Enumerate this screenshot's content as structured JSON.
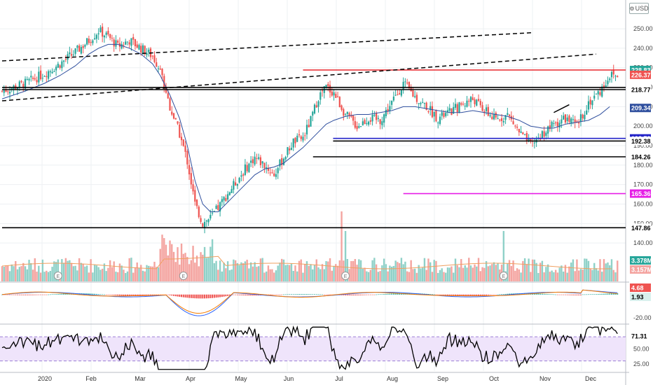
{
  "currency_button": {
    "label": "USD",
    "icon": "gear-icon"
  },
  "colors": {
    "up": "#26a69a",
    "down": "#ef5350",
    "vol_up": "#8fd1c8",
    "vol_down": "#f4a4a0",
    "ma": "#2f4f9e",
    "red_line": "#e8262b",
    "blue_line": "#2323c8",
    "magenta_line": "#e61ee6",
    "rsi_fill": "#efe4fb",
    "rsi_line": "#000000",
    "grid": "#eef0f3",
    "axis": "#555"
  },
  "earnings_marker": "E",
  "chart_data": [
    {
      "name": "price",
      "type": "candlestick",
      "y_range": [
        135,
        256
      ],
      "y_ticks": [
        140,
        150,
        160,
        170,
        180,
        190,
        200,
        210,
        220,
        230,
        240,
        250
      ],
      "x_labels": [
        {
          "label": "2020",
          "x": 44
        },
        {
          "label": "Feb",
          "x": 44.6
        },
        {
          "label": "Mar",
          "x": 45.2
        },
        {
          "label": "Apr",
          "x": 45.8
        },
        {
          "label": "May",
          "x": 46.4
        },
        {
          "label": "Jun",
          "x": 47
        },
        {
          "label": "Jul",
          "x": 47.6
        },
        {
          "label": "Aug",
          "x": 48.2
        },
        {
          "label": "Sep",
          "x": 48.8
        },
        {
          "label": "Oct",
          "x": 49.4
        },
        {
          "label": "Nov",
          "x": 50
        },
        {
          "label": "Dec",
          "x": 50.6
        }
      ],
      "price_path": [
        [
          0,
          218
        ],
        [
          12,
          222
        ],
        [
          22,
          227
        ],
        [
          30,
          232
        ],
        [
          38,
          238
        ],
        [
          45,
          244
        ],
        [
          50,
          249
        ],
        [
          55,
          246
        ],
        [
          60,
          241
        ],
        [
          66,
          244
        ],
        [
          72,
          240
        ],
        [
          78,
          236
        ],
        [
          82,
          229
        ],
        [
          87,
          210
        ],
        [
          92,
          196
        ],
        [
          96,
          182
        ],
        [
          100,
          160
        ],
        [
          104,
          150
        ],
        [
          108,
          153
        ],
        [
          112,
          158
        ],
        [
          116,
          164
        ],
        [
          121,
          171
        ],
        [
          126,
          178
        ],
        [
          131,
          184
        ],
        [
          136,
          180
        ],
        [
          141,
          175
        ],
        [
          146,
          184
        ],
        [
          151,
          192
        ],
        [
          156,
          194
        ],
        [
          160,
          203
        ],
        [
          164,
          215
        ],
        [
          168,
          220
        ],
        [
          172,
          217
        ],
        [
          178,
          206
        ],
        [
          184,
          200
        ],
        [
          190,
          204
        ],
        [
          196,
          203
        ],
        [
          202,
          212
        ],
        [
          208,
          222
        ],
        [
          214,
          215
        ],
        [
          220,
          210
        ],
        [
          226,
          204
        ],
        [
          232,
          207
        ],
        [
          238,
          211
        ],
        [
          244,
          214
        ],
        [
          250,
          208
        ],
        [
          256,
          203
        ],
        [
          262,
          206
        ],
        [
          268,
          197
        ],
        [
          274,
          190
        ],
        [
          280,
          196
        ],
        [
          286,
          201
        ],
        [
          292,
          204
        ],
        [
          298,
          200
        ],
        [
          304,
          212
        ],
        [
          310,
          218
        ],
        [
          315,
          226
        ]
      ],
      "ma": [
        [
          0,
          214
        ],
        [
          12,
          218
        ],
        [
          22,
          222
        ],
        [
          30,
          226
        ],
        [
          38,
          231
        ],
        [
          45,
          237
        ],
        [
          50,
          240
        ],
        [
          55,
          242
        ],
        [
          60,
          242
        ],
        [
          66,
          240
        ],
        [
          72,
          237
        ],
        [
          78,
          232
        ],
        [
          82,
          226
        ],
        [
          87,
          216
        ],
        [
          92,
          204
        ],
        [
          96,
          190
        ],
        [
          100,
          172
        ],
        [
          104,
          160
        ],
        [
          108,
          156
        ],
        [
          112,
          156
        ],
        [
          116,
          160
        ],
        [
          121,
          165
        ],
        [
          126,
          170
        ],
        [
          131,
          175
        ],
        [
          136,
          178
        ],
        [
          141,
          179
        ],
        [
          146,
          181
        ],
        [
          151,
          185
        ],
        [
          156,
          189
        ],
        [
          160,
          193
        ],
        [
          164,
          197
        ],
        [
          168,
          201
        ],
        [
          172,
          203
        ],
        [
          178,
          205
        ],
        [
          184,
          206
        ],
        [
          190,
          206
        ],
        [
          196,
          207
        ],
        [
          202,
          208
        ],
        [
          208,
          210
        ],
        [
          214,
          210
        ],
        [
          220,
          209
        ],
        [
          226,
          208
        ],
        [
          232,
          207
        ],
        [
          238,
          207
        ],
        [
          244,
          208
        ],
        [
          250,
          207
        ],
        [
          256,
          206
        ],
        [
          262,
          205
        ],
        [
          268,
          203
        ],
        [
          274,
          200
        ],
        [
          280,
          199
        ],
        [
          286,
          199
        ],
        [
          292,
          201
        ],
        [
          298,
          202
        ],
        [
          304,
          203
        ],
        [
          310,
          206
        ],
        [
          315,
          210
        ]
      ],
      "horizontal_levels": [
        {
          "value": 228.83,
          "label": "228.83",
          "color": "#e8262b",
          "from": 30
        },
        {
          "value": 219.85,
          "label": "219.85",
          "color": "#000000",
          "from": 0
        },
        {
          "value": 218.77,
          "label": "218.77",
          "color": "#000000",
          "from": 0
        },
        {
          "value": 193.72,
          "label": "193.72",
          "color": "#2323c8",
          "from": 33
        },
        {
          "value": 192.38,
          "label": "192.38",
          "color": "#000000",
          "from": 33
        },
        {
          "value": 184.26,
          "label": "184.26",
          "color": "#000000",
          "from": 31
        },
        {
          "value": 165.36,
          "label": "165.36",
          "color": "#e61ee6",
          "from": 40
        },
        {
          "value": 147.86,
          "label": "147.86",
          "color": "#000000",
          "from": 0
        }
      ],
      "tags": [
        {
          "value": 228.83,
          "label": "228.83",
          "bg": "#26a69a",
          "fg": "#ffffff"
        },
        {
          "value": 226.37,
          "label": "226.37",
          "bg": "#ef5350",
          "fg": "#ffffff"
        },
        {
          "value": 219.85,
          "label": "219.85",
          "bg": "#ffffff",
          "fg": "#000000"
        },
        {
          "value": 218.77,
          "label": "218.77",
          "bg": "#ffffff",
          "fg": "#000000"
        },
        {
          "value": 209.34,
          "label": "209.34",
          "bg": "#2f4f9e",
          "fg": "#ffffff"
        },
        {
          "value": 193.72,
          "label": "193.72",
          "bg": "#2323c8",
          "fg": "#ffffff"
        },
        {
          "value": 192.38,
          "label": "192.38",
          "bg": "#ffffff",
          "fg": "#000000"
        },
        {
          "value": 184.26,
          "label": "184.26",
          "bg": "#ffffff",
          "fg": "#000000"
        },
        {
          "value": 165.36,
          "label": "165.36",
          "bg": "#e61ee6",
          "fg": "#ffffff"
        },
        {
          "value": 147.86,
          "label": "147.86",
          "bg": "#ffffff",
          "fg": "#000000"
        }
      ],
      "trendlines": [
        {
          "points": [
            [
              0,
              233.5
            ],
            [
              50,
              248
            ]
          ],
          "style": "dashed"
        },
        {
          "points": [
            [
              0,
              213
            ],
            [
              56,
              237
            ]
          ],
          "style": "dashed"
        },
        {
          "points": [
            [
              286,
              207
            ],
            [
              294,
              211
            ]
          ],
          "style": "solid"
        }
      ]
    },
    {
      "name": "volume",
      "type": "bar",
      "tags": [
        {
          "label": "3.378M",
          "bg": "#26a69a",
          "fg": "#ffffff"
        },
        {
          "label": "3.157M",
          "bg": "#f4a4a0",
          "fg": "#ffffff"
        }
      ],
      "earnings_positions": [
        29,
        94,
        178,
        260
      ]
    },
    {
      "name": "macd",
      "type": "line",
      "y_range": [
        -24,
        8
      ],
      "y_ticks": [
        -20
      ],
      "tags": [
        {
          "value": 4.68,
          "label": "4.68",
          "bg": "#ef5350",
          "fg": "#ffffff"
        },
        {
          "value": 1.93,
          "label": "1.93",
          "bg": "#d8f0ed",
          "fg": "#000000"
        }
      ]
    },
    {
      "name": "rsi",
      "type": "line",
      "y_range": [
        14,
        89
      ],
      "y_ticks": [
        25,
        50
      ],
      "band": [
        30,
        70
      ],
      "last": {
        "value": 71.31,
        "label": "71.31"
      },
      "tick_labels": [
        "25.00",
        "50.00"
      ]
    }
  ]
}
